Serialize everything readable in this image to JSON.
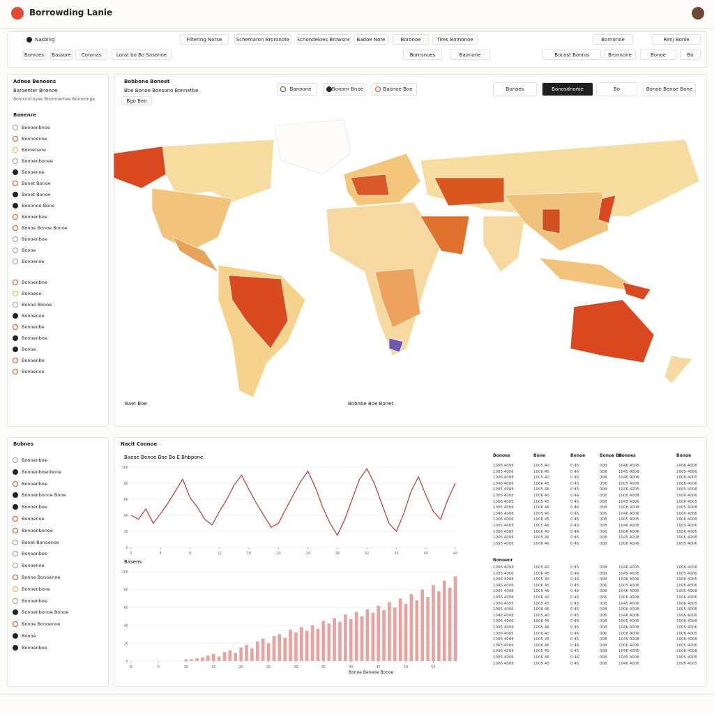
{
  "header": {
    "title": "Borrowding Lanie"
  },
  "toolbar": {
    "row1": [
      "Nasbing",
      "Filtering Norse",
      "Schemaron Broronote",
      "Scnondeloes Browsne",
      "Badoe Nore",
      "Boronoe",
      "Tires Bomonoe",
      "Bornonoe",
      "Renj Bonie"
    ],
    "row2": [
      "Bomoes",
      "Bassore",
      "Coronas",
      "Lorat bo Bo Sasonoe",
      "Bornsnoes",
      "Baonone",
      "Bocost Bonnis",
      "Bronnone",
      "Bonoe",
      "Bo"
    ]
  },
  "sidebar": {
    "title": "Adnee Benoens",
    "subtitle": "Baroenter Bnonoe",
    "note": "Bomconcoyee Bnomnemee Bronnnnge",
    "section": "Banenre",
    "items": [
      "Bonoenbnoe",
      "Bonnoonoe",
      "Boroeneoe",
      "Bonoenbonee",
      "Bonoenoe",
      "Bonet Bonoe",
      "Bonet Bonoe",
      "Bononoe Bone",
      "Bonoenboe",
      "Bonoe Bonoe Bonoe",
      "Bonoenboe",
      "Bonoe",
      "Bonoenoe",
      "Bonoenbne",
      "Bonoeoe",
      "Bonoe Bonoe",
      "Bonoenoe",
      "Bonoenbe",
      "Bonoenboe",
      "Bonoe",
      "Bonoenbe",
      "Bonoenoe"
    ]
  },
  "map": {
    "title": "Bobbone Bonoet",
    "subtitle": "Bbe Bonoe Bonsono Bonnetbe",
    "tag": "Bgo Beo",
    "legend": [
      "Banoone",
      "Bononr Bnoe",
      "Baonoe Boe"
    ],
    "controls": [
      "Bonoes",
      "Bonosdnome",
      "Bo",
      "Bonoe Benoe Bone"
    ],
    "foot_left": "Baet Boe",
    "foot_center": "Bobnbe Boe Bonet"
  },
  "bottom_list": {
    "title": "Bobnes",
    "items": [
      "Bonoenboe",
      "Bonoenboenbone",
      "Bonoenboe",
      "Bonoenbonoe Bone",
      "Bonoenboe",
      "Bonoenoe",
      "Bonoenbonoe",
      "Bonet Bonoenoe",
      "Bonoenboe",
      "Bonoenoe",
      "Bonoe Bonoenoe",
      "Bonoenbone",
      "Bonoenboe",
      "Bonoenbonoe Bonoe",
      "Bonoe Bonoenoe",
      "Bonoe",
      "Bonoenboe"
    ]
  },
  "panel": {
    "title": "Nacit Coonoe",
    "footer": "Bonoe Beneoe Bonoe"
  },
  "chart_data": [
    {
      "type": "line",
      "title": "Baeoe Benoe Boe Bo E Bhbpone",
      "color": "#b83a2e",
      "ylim": [
        0,
        100
      ],
      "yticks": [
        0,
        20,
        40,
        60,
        80,
        100
      ],
      "xlim": [
        0,
        44
      ],
      "xticks": [
        0,
        4,
        8,
        12,
        16,
        20,
        24,
        28,
        32,
        36,
        40,
        44
      ],
      "values": [
        40,
        35,
        48,
        30,
        42,
        55,
        70,
        85,
        62,
        50,
        35,
        28,
        45,
        60,
        78,
        90,
        72,
        55,
        40,
        25,
        30,
        48,
        65,
        82,
        95,
        75,
        50,
        30,
        15,
        35,
        60,
        85,
        98,
        80,
        55,
        30,
        20,
        42,
        70,
        88,
        65,
        45,
        35,
        60,
        80
      ]
    },
    {
      "type": "bar",
      "title": "Basens",
      "color": "#e8a3a0",
      "ylim": [
        0,
        100
      ],
      "yticks": [
        0,
        20,
        40,
        60,
        80,
        100
      ],
      "xlim": [
        0,
        59
      ],
      "xticks": [
        0,
        5,
        10,
        15,
        20,
        25,
        30,
        35,
        40,
        45,
        50,
        55
      ],
      "values": [
        0,
        0,
        0,
        0,
        0,
        0,
        0,
        0,
        0,
        0,
        2,
        2,
        3,
        4,
        6,
        8,
        5,
        10,
        12,
        9,
        15,
        18,
        14,
        22,
        25,
        20,
        28,
        30,
        26,
        35,
        32,
        38,
        34,
        40,
        36,
        45,
        42,
        48,
        44,
        52,
        47,
        55,
        50,
        58,
        54,
        62,
        57,
        66,
        60,
        70,
        64,
        75,
        68,
        80,
        72,
        85,
        78,
        90,
        82,
        95
      ]
    }
  ],
  "table": {
    "header": [
      "Bonoes",
      "Bone",
      "Bonoe",
      "Bonoe Bo",
      "Bonoes",
      "Bonoe"
    ],
    "rows": [
      [
        "1006 4008",
        "1005 40",
        "0 45",
        "008",
        "1046 4005",
        "1006 4008"
      ],
      [
        "1005 4006",
        "1006 45",
        "0 46",
        "008",
        "1045 4006",
        "1005 4006"
      ],
      [
        "1006 4008",
        "1005 40",
        "0 46",
        "008",
        "1046 4006",
        "1006 4005"
      ],
      [
        "1046 4006",
        "1006 45",
        "0 45",
        "006",
        "1005 4006",
        "1006 4006"
      ],
      [
        "1005 4008",
        "1005 46",
        "0 45",
        "008",
        "1046 4005",
        "1005 4008"
      ],
      [
        "1006 4008",
        "1006 40",
        "0 46",
        "006",
        "1006 4008",
        "1006 4006"
      ],
      [
        "1006 4005",
        "1005 45",
        "0 45",
        "008",
        "1045 4006",
        "1006 4005"
      ],
      [
        "1005 4006",
        "1006 46",
        "0 46",
        "008",
        "1006 4008",
        "1005 4008"
      ],
      [
        "1046 4008",
        "1005 40",
        "0 45",
        "006",
        "1046 4006",
        "1006 4006"
      ],
      [
        "1006 4006",
        "1006 45",
        "0 46",
        "008",
        "1005 4005",
        "1006 4008"
      ],
      [
        "1005 4008",
        "1005 46",
        "0 45",
        "008",
        "1046 4008",
        "1005 4006"
      ],
      [
        "1006 4005",
        "1006 40",
        "0 46",
        "006",
        "1006 4006",
        "1006 4005"
      ],
      [
        "1006 4008",
        "1005 45",
        "0 45",
        "008",
        "1045 4008",
        "1006 4008"
      ],
      [
        "1005 4006",
        "1006 46",
        "0 46",
        "008",
        "1006 4006",
        "1005 4006"
      ]
    ],
    "section": "Bonoenr",
    "rows2": [
      [
        "1006 4008",
        "1005 40",
        "0 45",
        "008",
        "1046 4005",
        "1006 4008"
      ],
      [
        "1005 4006",
        "1006 45",
        "0 46",
        "008",
        "1045 4006",
        "1005 4006"
      ],
      [
        "1006 4008",
        "1005 40",
        "0 46",
        "008",
        "1046 4006",
        "1006 4005"
      ],
      [
        "1046 4006",
        "1006 45",
        "0 45",
        "006",
        "1005 4006",
        "1006 4006"
      ],
      [
        "1005 4008",
        "1005 46",
        "0 45",
        "008",
        "1046 4005",
        "1005 4008"
      ],
      [
        "1006 4008",
        "1006 40",
        "0 46",
        "006",
        "1006 4008",
        "1006 4006"
      ],
      [
        "1006 4005",
        "1005 45",
        "0 45",
        "008",
        "1045 4006",
        "1006 4005"
      ],
      [
        "1005 4006",
        "1006 46",
        "0 46",
        "008",
        "1006 4008",
        "1005 4008"
      ],
      [
        "1046 4008",
        "1005 40",
        "0 45",
        "006",
        "1046 4006",
        "1006 4006"
      ],
      [
        "1006 4006",
        "1006 45",
        "0 46",
        "008",
        "1005 4005",
        "1006 4008"
      ],
      [
        "1005 4008",
        "1005 46",
        "0 45",
        "008",
        "1046 4008",
        "1005 4006"
      ],
      [
        "1006 4005",
        "1006 40",
        "0 46",
        "006",
        "1006 4006",
        "1006 4005"
      ],
      [
        "1006 4008",
        "1005 45",
        "0 45",
        "008",
        "1045 4008",
        "1006 4008"
      ],
      [
        "1005 4006",
        "1006 46",
        "0 46",
        "008",
        "1006 4006",
        "1005 4006"
      ],
      [
        "1006 4008",
        "1005 40",
        "0 45",
        "008",
        "1046 4005",
        "1006 4008"
      ],
      [
        "1005 4006",
        "1006 45",
        "0 46",
        "008",
        "1045 4006",
        "1005 4006"
      ],
      [
        "1006 4008",
        "1005 40",
        "0 46",
        "008",
        "1046 4006",
        "1006 4005"
      ]
    ]
  }
}
